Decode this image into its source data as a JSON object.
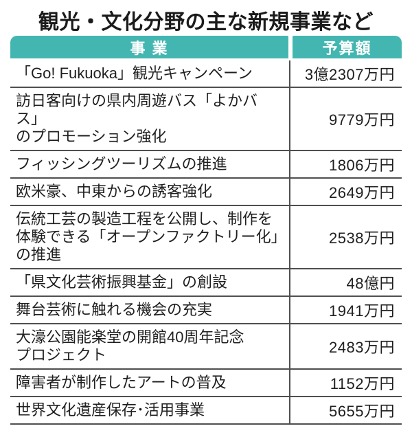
{
  "title": "観光・文化分野の主な新規事業など",
  "colors": {
    "header_bg": "#44b6b1",
    "header_text": "#ffffff",
    "border": "#4f4f4f",
    "text": "#1f1f1f",
    "background": "#ffffff"
  },
  "table": {
    "header": {
      "project": "事 業",
      "budget": "予算額"
    },
    "rows": [
      {
        "project": "「Go! Fukuoka」観光キャンペーン",
        "budget": "3億2307万円"
      },
      {
        "project": "訪日客向けの県内周遊バス「よかバス」\nのプロモーション強化",
        "budget": "9779万円"
      },
      {
        "project": "フィッシングツーリズムの推進",
        "budget": "1806万円"
      },
      {
        "project": "欧米豪、中東からの誘客強化",
        "budget": "2649万円"
      },
      {
        "project": "伝統工芸の製造工程を公開し、制作を\n体験できる「オープンファクトリー化」\nの推進",
        "budget": "2538万円"
      },
      {
        "project": "「県文化芸術振興基金」の創設",
        "budget": "48億円"
      },
      {
        "project": "舞台芸術に触れる機会の充実",
        "budget": "1941万円"
      },
      {
        "project": "大濠公園能楽堂の開館40周年記念\nプロジェクト",
        "budget": "2483万円"
      },
      {
        "project": "障害者が制作したアートの普及",
        "budget": "1152万円"
      },
      {
        "project": "世界文化遺産保存･活用事業",
        "budget": "5655万円"
      }
    ]
  },
  "chart_data": {
    "type": "table",
    "title": "観光・文化分野の主な新規事業など",
    "columns": [
      "事業",
      "予算額"
    ],
    "rows": [
      [
        "「Go! Fukuoka」観光キャンペーン",
        "3億2307万円"
      ],
      [
        "訪日客向けの県内周遊バス「よかバス」のプロモーション強化",
        "9779万円"
      ],
      [
        "フィッシングツーリズムの推進",
        "1806万円"
      ],
      [
        "欧米豪、中東からの誘客強化",
        "2649万円"
      ],
      [
        "伝統工芸の製造工程を公開し、制作を体験できる「オープンファクトリー化」の推進",
        "2538万円"
      ],
      [
        "「県文化芸術振興基金」の創設",
        "48億円"
      ],
      [
        "舞台芸術に触れる機会の充実",
        "1941万円"
      ],
      [
        "大濠公園能楽堂の開館40周年記念プロジェクト",
        "2483万円"
      ],
      [
        "障害者が制作したアートの普及",
        "1152万円"
      ],
      [
        "世界文化遺産保存･活用事業",
        "5655万円"
      ]
    ],
    "values_in_man_yen": [
      32307,
      9779,
      1806,
      2649,
      2538,
      480000,
      1941,
      2483,
      1152,
      5655
    ]
  }
}
